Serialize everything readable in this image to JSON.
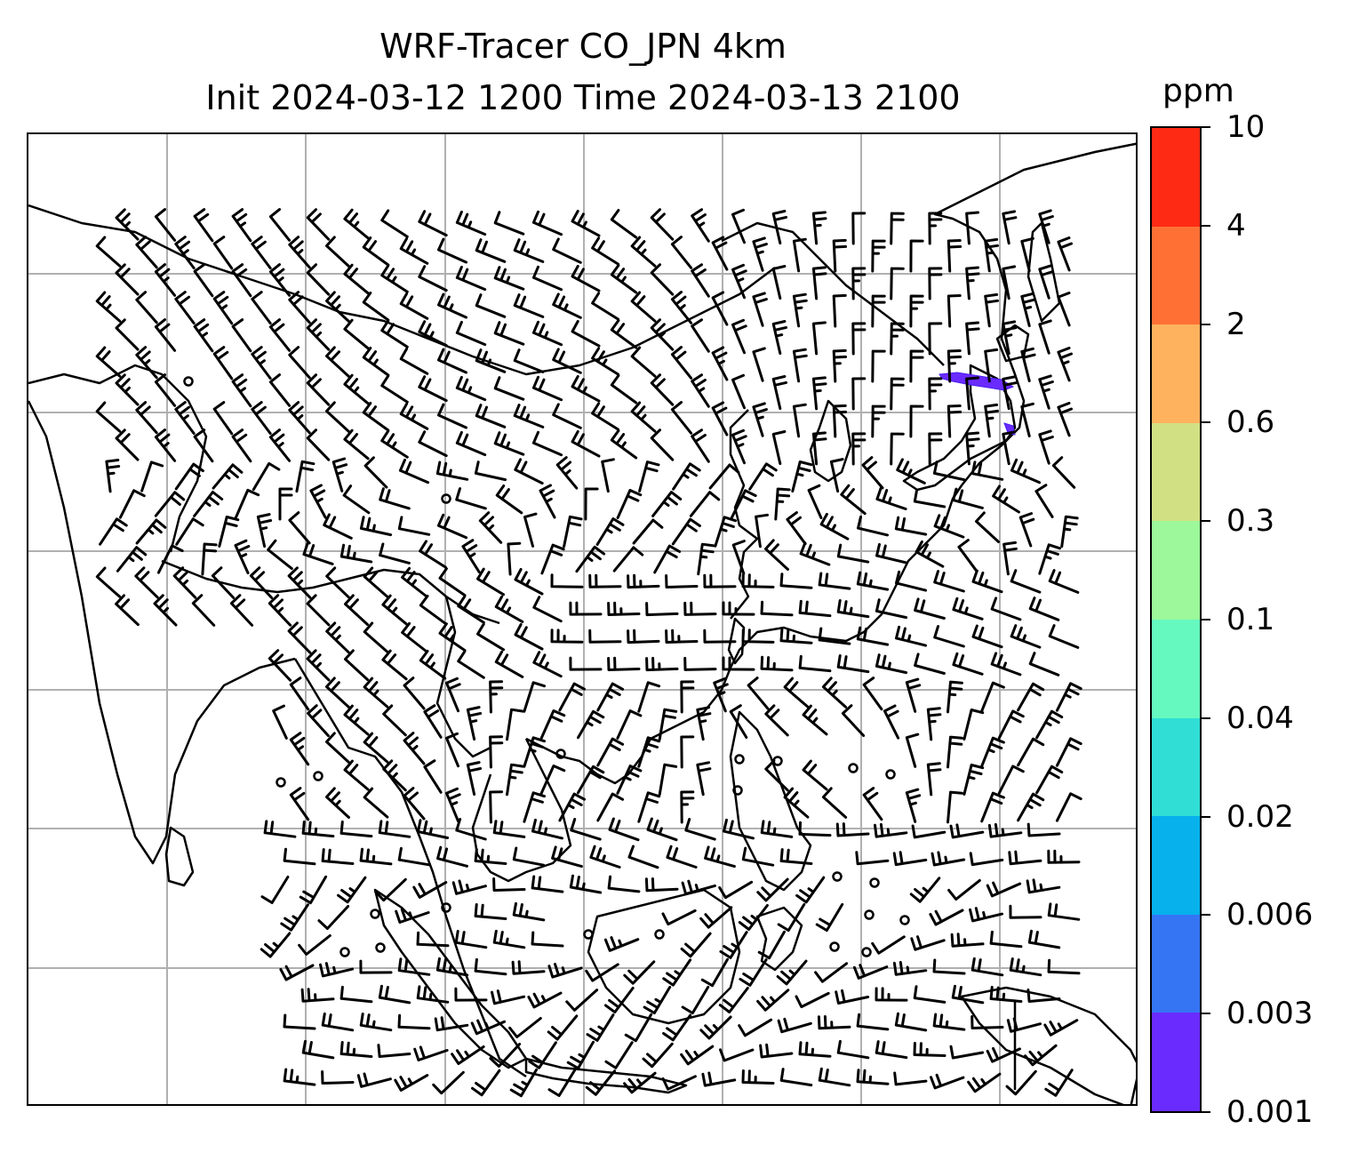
{
  "title": {
    "line1": "WRF-Tracer CO_JPN 4km",
    "line2": "Init 2024-03-12 1200 Time 2024-03-13 2100"
  },
  "colorbar": {
    "unit": "ppm",
    "levels": [
      "0.001",
      "0.003",
      "0.006",
      "0.02",
      "0.04",
      "0.1",
      "0.3",
      "0.6",
      "2",
      "4",
      "10"
    ],
    "colors": [
      "#6a2bff",
      "#3575f4",
      "#06b1ec",
      "#30ded5",
      "#66f9bf",
      "#9cf89a",
      "#d2e084",
      "#ffb25e",
      "#ff7035",
      "#ff2a14"
    ]
  },
  "map": {
    "gridline_color": "#b0b0b0",
    "coastline_color": "#000000",
    "co_plume_color": "#6a2bff"
  }
}
